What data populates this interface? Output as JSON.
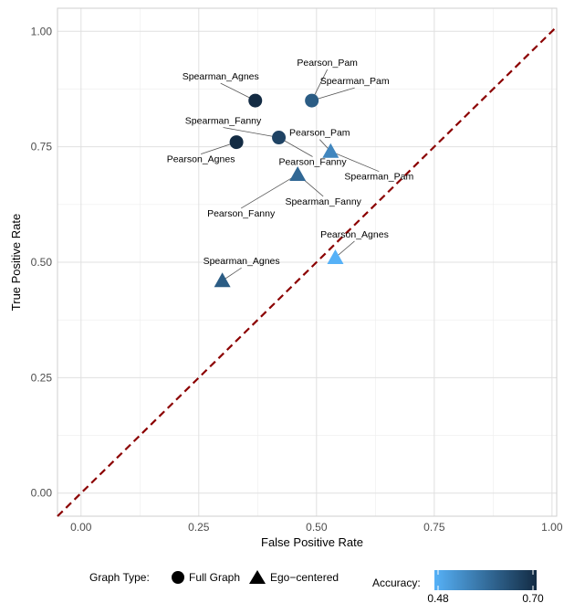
{
  "chart_data": {
    "type": "scatter",
    "xlabel": "False Positive Rate",
    "ylabel": "True Positive Rate",
    "xlim": [
      -0.05,
      1.01
    ],
    "ylim": [
      -0.05,
      1.05
    ],
    "x_ticks": [
      "0.00",
      "0.25",
      "0.50",
      "0.75",
      "1.00"
    ],
    "y_ticks": [
      "0.00",
      "0.25",
      "0.50",
      "0.75",
      "1.00"
    ],
    "grid": true,
    "reference_line": {
      "from": [
        0,
        0
      ],
      "to": [
        1,
        1
      ],
      "style": "dashed",
      "color": "#8b0000"
    },
    "points": [
      {
        "label": "Spearman_Agnes",
        "graph_type": "Full Graph",
        "x": 0.37,
        "y": 0.85,
        "accuracy": 0.7
      },
      {
        "label": "Pearson_Pam",
        "graph_type": "Full Graph",
        "x": 0.49,
        "y": 0.85,
        "accuracy": 0.62
      },
      {
        "label": "Spearman_Pam",
        "graph_type": "Full Graph",
        "x": 0.49,
        "y": 0.85,
        "accuracy": 0.62
      },
      {
        "label": "Spearman_Fanny",
        "graph_type": "Full Graph",
        "x": 0.42,
        "y": 0.77,
        "accuracy": 0.66
      },
      {
        "label": "Pearson_Fanny",
        "graph_type": "Full Graph",
        "x": 0.42,
        "y": 0.77,
        "accuracy": 0.66
      },
      {
        "label": "Pearson_Agnes",
        "graph_type": "Full Graph",
        "x": 0.33,
        "y": 0.76,
        "accuracy": 0.7
      },
      {
        "label": "Pearson_Pam",
        "graph_type": "Ego-centered",
        "x": 0.53,
        "y": 0.74,
        "accuracy": 0.55
      },
      {
        "label": "Spearman_Pam",
        "graph_type": "Ego-centered",
        "x": 0.53,
        "y": 0.74,
        "accuracy": 0.55
      },
      {
        "label": "Spearman_Fanny",
        "graph_type": "Ego-centered",
        "x": 0.46,
        "y": 0.69,
        "accuracy": 0.6
      },
      {
        "label": "Pearson_Fanny",
        "graph_type": "Ego-centered",
        "x": 0.46,
        "y": 0.69,
        "accuracy": 0.6
      },
      {
        "label": "Pearson_Agnes",
        "graph_type": "Ego-centered",
        "x": 0.54,
        "y": 0.51,
        "accuracy": 0.48
      },
      {
        "label": "Spearman_Agnes",
        "graph_type": "Ego-centered",
        "x": 0.3,
        "y": 0.46,
        "accuracy": 0.62
      }
    ],
    "legend": {
      "placement": "bottom",
      "shape_title": "Graph Type:",
      "shape_items": [
        {
          "name": "Full Graph",
          "icon": "circle-icon"
        },
        {
          "name": "Ego−centered",
          "icon": "triangle-icon"
        }
      ],
      "color_title": "Accuracy:",
      "color_min_label": "0.48",
      "color_max_label": "0.70",
      "color_min": 0.48,
      "color_max": 0.7,
      "color_low": "#56b1f7",
      "color_high": "#132b43"
    }
  }
}
